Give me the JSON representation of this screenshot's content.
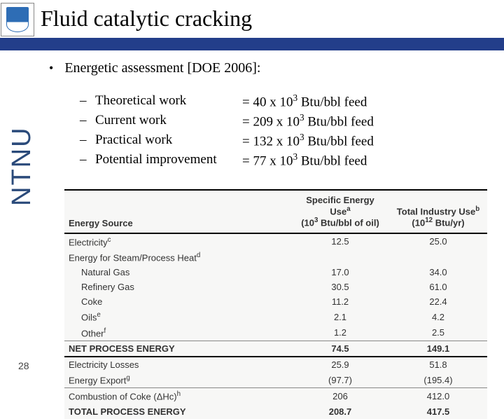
{
  "title": "Fluid catalytic cracking",
  "ntnu": "NTNU",
  "page_number": "28",
  "bullet_main": "Energetic assessment [DOE 2006]:",
  "work_items": [
    {
      "label": "Theoretical work",
      "value_prefix": "= 40 x 10",
      "value_sup": "3",
      "value_suffix": " Btu/bbl feed"
    },
    {
      "label": "Current work",
      "value_prefix": "= 209 x 10",
      "value_sup": "3",
      "value_suffix": " Btu/bbl feed"
    },
    {
      "label": "Practical work",
      "value_prefix": "= 132 x 10",
      "value_sup": "3",
      "value_suffix": " Btu/bbl feed"
    },
    {
      "label": "Potential improvement",
      "value_prefix": "= 77 x 10",
      "value_sup": "3",
      "value_suffix": " Btu/bbl feed"
    }
  ],
  "energy_table": {
    "columns": {
      "c0": "Energy Source",
      "c1_line1": "Specific Energy Use",
      "c1_sup": "a",
      "c1_line2_pre": "(10",
      "c1_line2_sup": "3",
      "c1_line2_post": " Btu/bbl of oil)",
      "c2_line1": "Total Industry Use",
      "c2_sup": "b",
      "c2_line2_pre": "(10",
      "c2_line2_sup": "12",
      "c2_line2_post": " Btu/yr)"
    },
    "rows": [
      {
        "label": "Electricity",
        "sup": "c",
        "spec": "12.5",
        "total": "25.0",
        "cls": "double-top"
      },
      {
        "label": "Energy for Steam/Process Heat",
        "sup": "d",
        "spec": "",
        "total": "",
        "cls": ""
      },
      {
        "label": "Natural Gas",
        "sup": "",
        "spec": "17.0",
        "total": "34.0",
        "cls": "indent"
      },
      {
        "label": "Refinery Gas",
        "sup": "",
        "spec": "30.5",
        "total": "61.0",
        "cls": "indent"
      },
      {
        "label": "Coke",
        "sup": "",
        "spec": "11.2",
        "total": "22.4",
        "cls": "indent"
      },
      {
        "label": "Oils",
        "sup": "e",
        "spec": "2.1",
        "total": "4.2",
        "cls": "indent"
      },
      {
        "label": "Other",
        "sup": "f",
        "spec": "1.2",
        "total": "2.5",
        "cls": "indent"
      },
      {
        "label": "NET PROCESS ENERGY",
        "sup": "",
        "spec": "74.5",
        "total": "149.1",
        "cls": "bold thin-top"
      },
      {
        "label": "Electricity Losses",
        "sup": "",
        "spec": "25.9",
        "total": "51.8",
        "cls": "double-top"
      },
      {
        "label": "Energy Export",
        "sup": "g",
        "spec": "(97.7)",
        "total": "(195.4)",
        "cls": ""
      },
      {
        "label": "Combustion of Coke (ΔHc)",
        "sup": "h",
        "spec": "206",
        "total": "412.0",
        "cls": "thin-top"
      },
      {
        "label": "TOTAL PROCESS ENERGY",
        "sup": "",
        "spec": "208.7",
        "total": "417.5",
        "cls": "bold"
      }
    ]
  },
  "colors": {
    "blue_bar": "#233e8a",
    "ntnu_text": "#2a4a7a",
    "table_bg": "#f7f7f6"
  }
}
